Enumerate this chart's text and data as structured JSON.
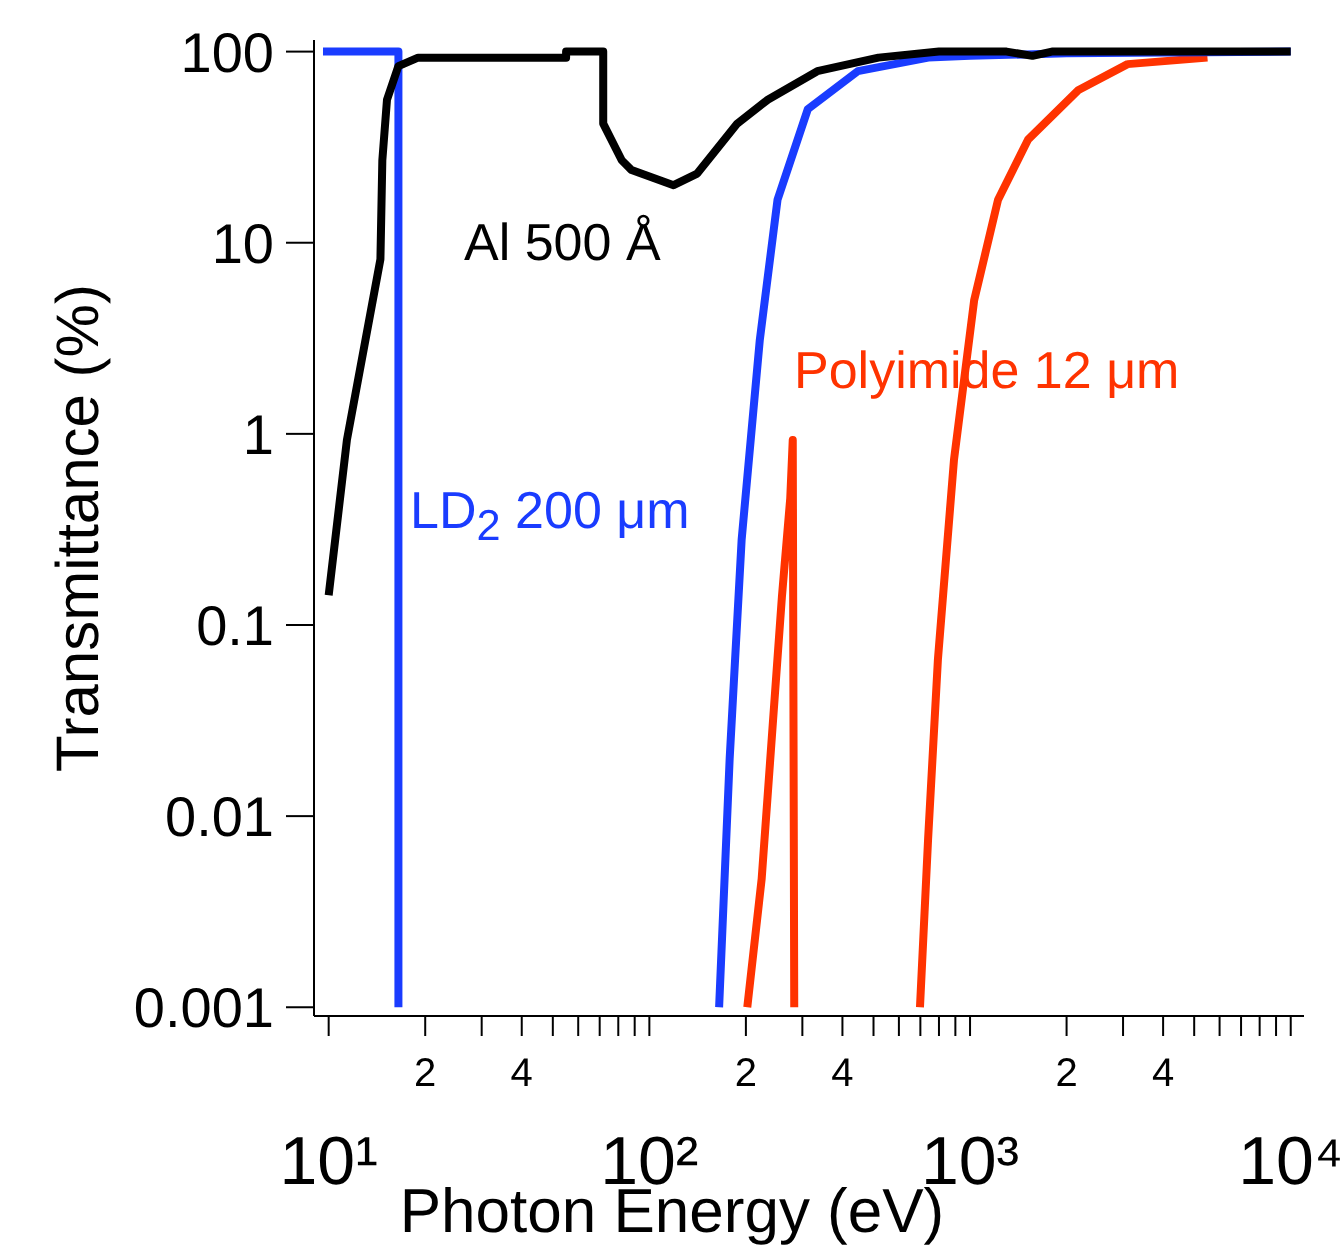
{
  "chart_data": {
    "type": "line",
    "xlabel": "Photon Energy (eV)",
    "ylabel": "Transmittance (%)",
    "log": "xy",
    "grid": false,
    "legend": false,
    "marker": "none",
    "line_style": "solid",
    "xlim": [
      9,
      11000
    ],
    "ylim": [
      0.0009,
      115
    ],
    "xticks": [
      {
        "value": 10,
        "label": "10¹"
      },
      {
        "value": 20,
        "label": null
      },
      {
        "value": 30,
        "label": null
      },
      {
        "value": 40,
        "label": null
      },
      {
        "value": 50,
        "label": null
      },
      {
        "value": 60,
        "label": null
      },
      {
        "value": 70,
        "label": null
      },
      {
        "value": 80,
        "label": null
      },
      {
        "value": 90,
        "label": null
      },
      {
        "value": 100,
        "label": "10²"
      },
      {
        "value": 200,
        "label": null
      },
      {
        "value": 300,
        "label": null
      },
      {
        "value": 400,
        "label": null
      },
      {
        "value": 500,
        "label": null
      },
      {
        "value": 600,
        "label": null
      },
      {
        "value": 700,
        "label": null
      },
      {
        "value": 800,
        "label": null
      },
      {
        "value": 900,
        "label": null
      },
      {
        "value": 1000,
        "label": "10³"
      },
      {
        "value": 2000,
        "label": null
      },
      {
        "value": 3000,
        "label": null
      },
      {
        "value": 4000,
        "label": null
      },
      {
        "value": 5000,
        "label": null
      },
      {
        "value": 6000,
        "label": null
      },
      {
        "value": 7000,
        "label": null
      },
      {
        "value": 8000,
        "label": null
      },
      {
        "value": 9000,
        "label": null
      },
      {
        "value": 10000,
        "label": "10⁴"
      }
    ],
    "yticks": [
      0.001,
      0.01,
      0.1,
      1,
      10,
      100
    ],
    "annotations": [
      "2",
      "4",
      "2",
      "4",
      "2",
      "4"
    ],
    "series": [
      {
        "name": "Al 500 Å",
        "color": "#000000",
        "x": [
          10,
          11.4,
          14.5,
          14.7,
          15.2,
          16.5,
          19,
          55,
          55,
          71.8,
          71.8,
          82,
          88,
          119,
          141,
          188,
          234,
          334,
          518,
          800,
          1300,
          1565,
          1800,
          10000
        ],
        "values": [
          0.143,
          0.93,
          8.2,
          27,
          56,
          84,
          93,
          93,
          100,
          100,
          42,
          27,
          24,
          20,
          23,
          42,
          56,
          79,
          93,
          100,
          100,
          95,
          100,
          100
        ]
      },
      {
        "name": "LD$_{2}$ 200 μm",
        "color": "#1a3cff",
        "x": [
          9.6,
          16.5,
          16.5,
          50,
          165,
          178,
          194,
          221,
          251,
          312,
          447,
          741,
          1000,
          2000,
          10000
        ],
        "values": [
          100,
          100,
          0.001,
          null,
          0.001,
          0.02,
          0.28,
          3.1,
          16.8,
          50,
          79,
          93,
          95,
          98,
          100
        ]
      },
      {
        "name": "Polyimide 12 μm",
        "color": "#ff3300",
        "x": [
          202,
          224,
          259,
          275,
          280,
          283,
          450,
          698,
          740,
          794,
          891,
          1030,
          1223,
          1516,
          2180,
          3100,
          5500
        ],
        "values": [
          0.001,
          0.0047,
          0.14,
          0.46,
          0.93,
          0.001,
          null,
          0.001,
          0.0076,
          0.066,
          0.73,
          5.0,
          16.8,
          34.6,
          63,
          86,
          93
        ]
      }
    ]
  }
}
